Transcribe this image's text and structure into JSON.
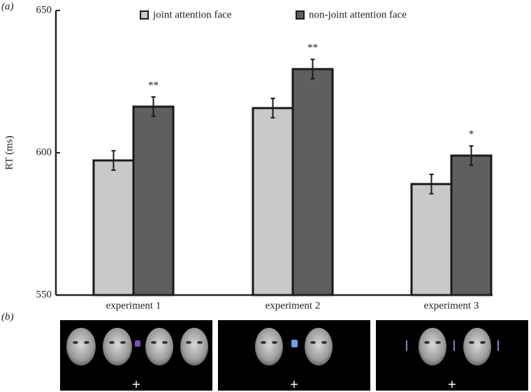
{
  "panel_labels": [
    "(a)",
    "(b)"
  ],
  "chart_data": {
    "type": "bar",
    "ylabel": "RT (ms)",
    "categories": [
      "experiment 1",
      "experiment 2",
      "experiment 3"
    ],
    "series": [
      {
        "name": "joint attention face",
        "color": "#c8c9cb",
        "values": [
          597.3,
          615.7,
          589.0
        ],
        "errors": [
          3.4,
          3.4,
          3.4
        ]
      },
      {
        "name": "non-joint attention face",
        "color": "#5f5f61",
        "values": [
          616.2,
          629.4,
          599.0
        ],
        "errors": [
          3.4,
          3.4,
          3.4
        ]
      }
    ],
    "annotations": [
      {
        "text": "**",
        "category": 0,
        "series": 1
      },
      {
        "text": "**",
        "category": 1,
        "series": 1
      },
      {
        "text": "*",
        "category": 2,
        "series": 1
      }
    ],
    "ylim": [
      550,
      650
    ],
    "yticks": [
      550,
      600,
      650
    ],
    "legend": "top"
  }
}
